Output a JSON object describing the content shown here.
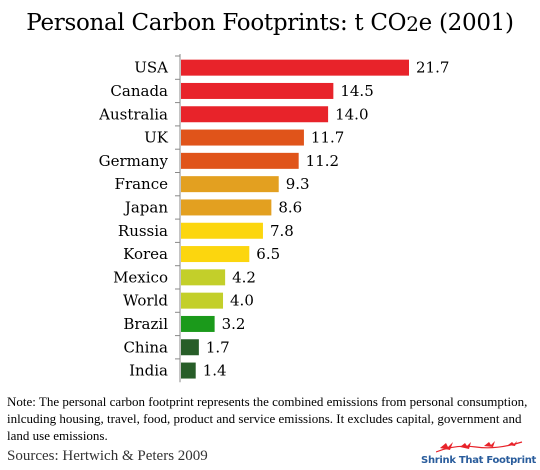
{
  "title": {
    "main": "Personal Carbon Footprints: t CO",
    "subscript": "2",
    "suffix": "e (2001)"
  },
  "chart_data": {
    "type": "bar",
    "orientation": "horizontal",
    "title": "Personal Carbon Footprints: t CO2e (2001)",
    "xlabel": "",
    "ylabel": "",
    "xlim": [
      0,
      21.7
    ],
    "grid": false,
    "legend": "none",
    "categories": [
      "USA",
      "Canada",
      "Australia",
      "UK",
      "Germany",
      "France",
      "Japan",
      "Russia",
      "Korea",
      "Mexico",
      "World",
      "Brazil",
      "China",
      "India"
    ],
    "values": [
      21.7,
      14.5,
      14.0,
      11.7,
      11.2,
      9.3,
      8.6,
      7.8,
      6.5,
      4.2,
      4.0,
      3.2,
      1.7,
      1.4
    ],
    "value_labels": [
      "21.7",
      "14.5",
      "14.0",
      "11.7",
      "11.2",
      "9.3",
      "8.6",
      "7.8",
      "6.5",
      "4.2",
      "4.0",
      "3.2",
      "1.7",
      "1.4"
    ],
    "colors": [
      "#e8232a",
      "#e8232a",
      "#e8232a",
      "#e0541a",
      "#e0541a",
      "#e3a020",
      "#e3a020",
      "#fcd60e",
      "#fcd60e",
      "#c3cf2a",
      "#c3cf2a",
      "#1b9a1b",
      "#275d28",
      "#275d28"
    ]
  },
  "note": "Note:  The personal carbon footprint represents the combined emissions from personal consumption, inlcuding housing, travel, food, product and service emissions.  It excludes capital, government and land use emissions.",
  "source": "Sources:  Hertwich & Peters 2009",
  "logo": {
    "text": "Shrink That Footprint",
    "bird_color": "#e8232a",
    "text_color": "#2a5d9c"
  }
}
